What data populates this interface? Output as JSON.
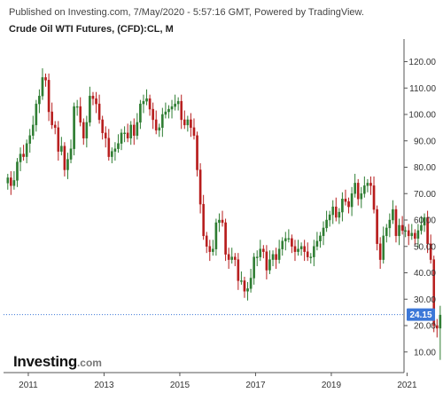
{
  "header": {
    "published": "Published on Investing.com, 7/May/2020 - 5:57:16 GMT, Powered by TradingView."
  },
  "chart_title": "Crude Oil WTI Futures, (CFD):CL, M",
  "logo": {
    "brand": "Investing",
    "tld": ".com"
  },
  "colors": {
    "up": "#2e7d32",
    "down": "#b71c1c",
    "price_line": "#3c78d8",
    "price_tag": "#3c78d8",
    "axis": "#555555"
  },
  "chart_data": {
    "type": "candlestick",
    "title": "Crude Oil WTI Futures, (CFD):CL, M",
    "interval": "monthly",
    "xlabel": "",
    "ylabel": "",
    "x_ticks": [
      "2011",
      "2013",
      "2015",
      "2017",
      "2019",
      "2021"
    ],
    "y_ticks": [
      10,
      20,
      30,
      40,
      50,
      60,
      70,
      80,
      90,
      100,
      110,
      120
    ],
    "y_tick_labels": [
      "10.00",
      "20.00",
      "30.00",
      "40.00",
      "50.00",
      "60.00",
      "70.00",
      "80.00",
      "90.00",
      "100.00",
      "110.00",
      "120.00"
    ],
    "x_range": [
      "2010-06",
      "2021-02"
    ],
    "ylim": [
      0,
      125
    ],
    "last_price": 24.15,
    "last_price_label": "24.15",
    "closes": [
      76,
      73,
      75,
      82,
      85,
      84,
      89,
      92,
      96,
      104,
      107,
      114,
      113,
      101,
      96,
      95,
      86,
      88,
      79,
      83,
      87,
      103,
      103,
      97,
      91,
      97,
      107,
      106,
      104,
      98,
      93,
      91,
      84,
      86,
      87,
      89,
      93,
      93,
      91,
      96,
      92,
      97,
      104,
      105,
      106,
      102,
      98,
      94,
      95,
      100,
      101,
      102,
      103,
      104,
      105,
      98,
      96,
      98,
      95,
      92,
      79,
      66,
      54,
      50,
      48,
      49,
      59,
      60,
      59,
      47,
      45,
      46,
      45,
      37,
      37,
      33,
      34,
      38,
      46,
      46,
      49,
      48,
      41,
      45,
      47,
      45,
      49,
      52,
      53,
      53,
      50,
      48,
      49,
      50,
      48,
      46,
      46,
      50,
      52,
      54,
      57,
      60,
      62,
      65,
      61,
      63,
      68,
      67,
      65,
      70,
      74,
      68,
      70,
      73,
      74,
      73,
      64,
      51,
      45,
      54,
      57,
      60,
      64,
      54,
      58,
      56,
      56,
      54,
      55,
      53,
      56,
      58,
      61,
      51,
      45,
      20,
      19,
      24
    ]
  }
}
